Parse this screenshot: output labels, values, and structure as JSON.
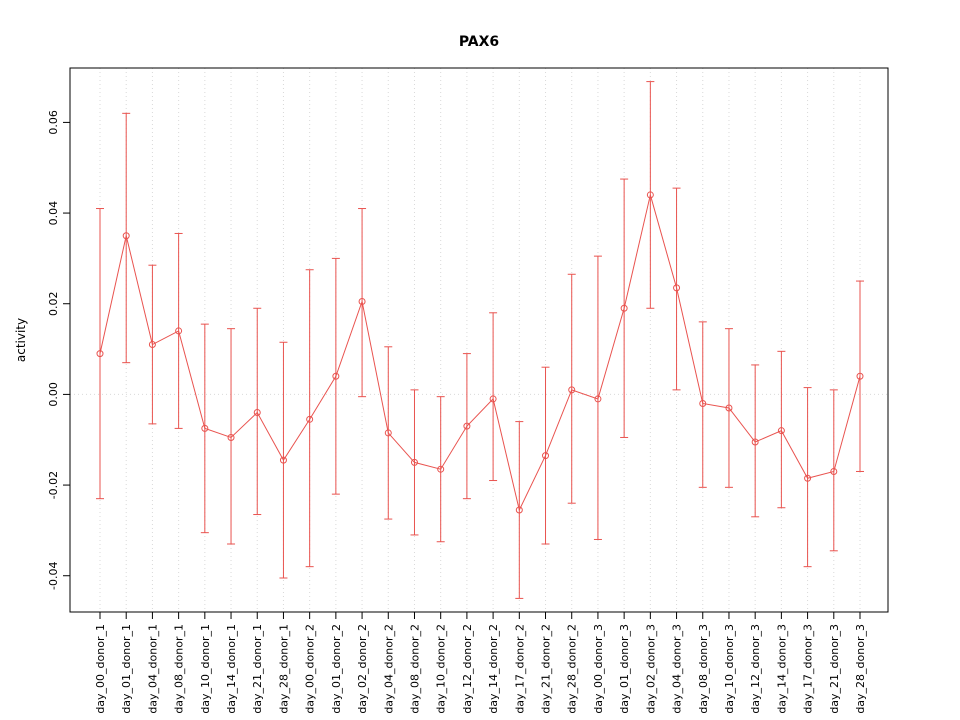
{
  "chart_data": {
    "type": "line",
    "title": "PAX6",
    "xlabel": "",
    "ylabel": "activity",
    "ylim": [
      -0.048,
      0.072
    ],
    "yticks": [
      -0.04,
      -0.02,
      0.0,
      0.02,
      0.04,
      0.06
    ],
    "grid": "dotted vertical line at each category; dotted horizontal line at y=0; no legend",
    "series_color": "#e9534f",
    "grid_color": "#d9d9d9",
    "categories": [
      "day_00_donor_1",
      "day_01_donor_1",
      "day_04_donor_1",
      "day_08_donor_1",
      "day_10_donor_1",
      "day_14_donor_1",
      "day_21_donor_1",
      "day_28_donor_1",
      "day_00_donor_2",
      "day_01_donor_2",
      "day_02_donor_2",
      "day_04_donor_2",
      "day_08_donor_2",
      "day_10_donor_2",
      "day_12_donor_2",
      "day_14_donor_2",
      "day_17_donor_2",
      "day_21_donor_2",
      "day_28_donor_2",
      "day_00_donor_3",
      "day_01_donor_3",
      "day_02_donor_3",
      "day_04_donor_3",
      "day_08_donor_3",
      "day_10_donor_3",
      "day_12_donor_3",
      "day_14_donor_3",
      "day_17_donor_3",
      "day_21_donor_3",
      "day_28_donor_3"
    ],
    "values": [
      0.009,
      0.035,
      0.011,
      0.014,
      -0.0075,
      -0.0095,
      -0.004,
      -0.0145,
      -0.0055,
      0.004,
      0.0205,
      -0.0085,
      -0.015,
      -0.0165,
      -0.007,
      -0.001,
      -0.0255,
      -0.0135,
      0.001,
      -0.001,
      0.019,
      0.044,
      0.0235,
      -0.002,
      -0.003,
      -0.0105,
      -0.008,
      -0.0185,
      -0.017,
      0.004
    ],
    "error_lower": [
      -0.023,
      0.007,
      -0.0065,
      -0.0075,
      -0.0305,
      -0.033,
      -0.0265,
      -0.0405,
      -0.038,
      -0.022,
      -0.0005,
      -0.0275,
      -0.031,
      -0.0325,
      -0.023,
      -0.019,
      -0.045,
      -0.033,
      -0.024,
      -0.032,
      -0.0095,
      0.019,
      0.001,
      -0.0205,
      -0.0205,
      -0.027,
      -0.025,
      -0.038,
      -0.0345,
      -0.017
    ],
    "error_upper": [
      0.041,
      0.062,
      0.0285,
      0.0355,
      0.0155,
      0.0145,
      0.019,
      0.0115,
      0.0275,
      0.03,
      0.041,
      0.0105,
      0.001,
      -0.0005,
      0.009,
      0.018,
      -0.006,
      0.006,
      0.0265,
      0.0305,
      0.0475,
      0.069,
      0.0455,
      0.016,
      0.0145,
      0.0065,
      0.0095,
      0.0015,
      0.001,
      0.025
    ]
  }
}
